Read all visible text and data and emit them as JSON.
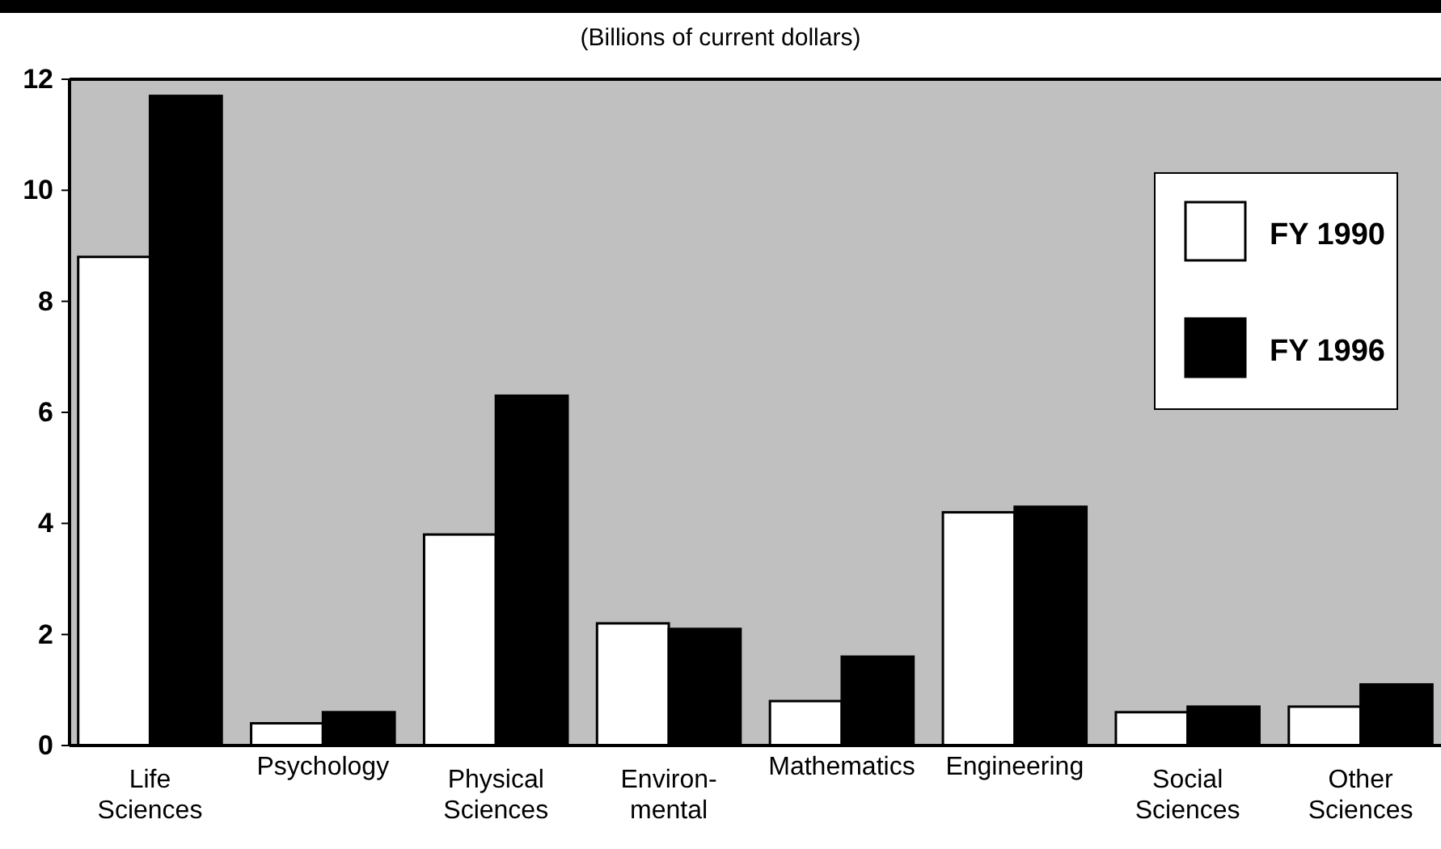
{
  "chart_data": {
    "type": "bar",
    "subtitle": "(Billions of current dollars)",
    "categories": [
      "Life\nSciences",
      "Psychology",
      "Physical\nSciences",
      "Environ-\nmental",
      "Mathematics",
      "Engineering",
      "Social\nSciences",
      "Other\nSciences"
    ],
    "series": [
      {
        "name": "FY 1990",
        "color": "#ffffff",
        "values": [
          8.8,
          0.4,
          3.8,
          2.2,
          0.8,
          4.2,
          0.6,
          0.7
        ]
      },
      {
        "name": "FY 1996",
        "color": "#000000",
        "values": [
          11.7,
          0.6,
          6.3,
          2.1,
          1.6,
          4.3,
          0.7,
          1.1
        ]
      }
    ],
    "ylim": [
      0,
      12
    ],
    "yticks": [
      0,
      2,
      4,
      6,
      8,
      10,
      12
    ],
    "grid": false,
    "legend": "top right"
  }
}
